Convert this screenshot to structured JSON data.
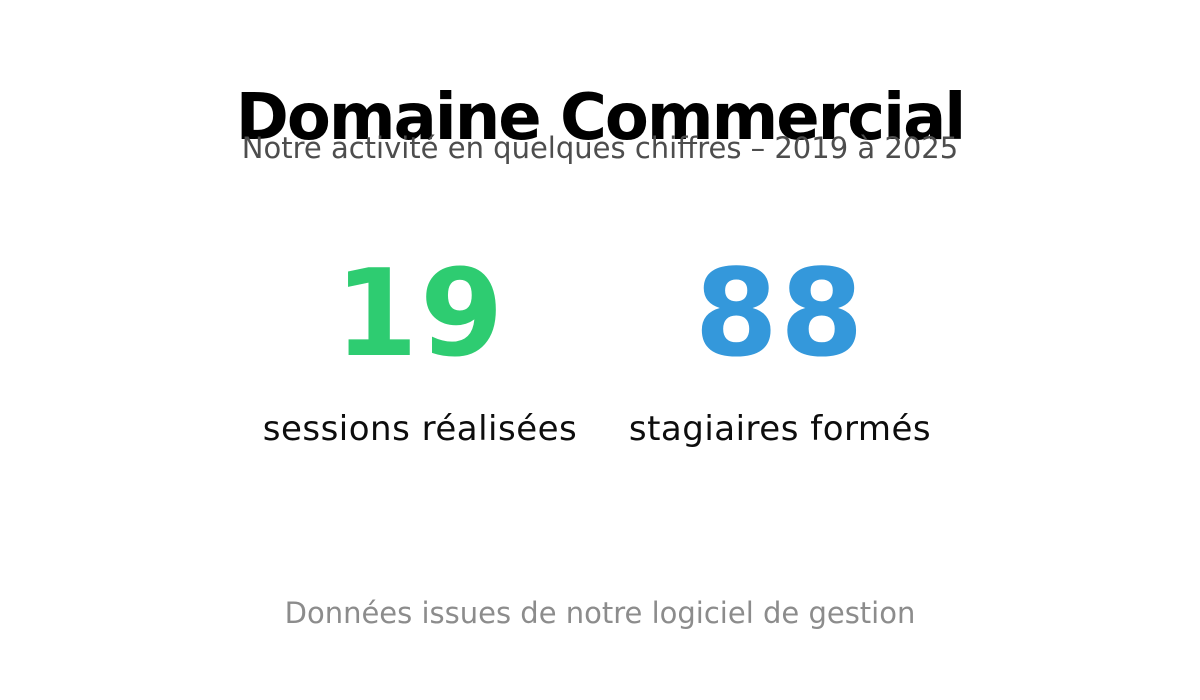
{
  "page": {
    "background": "#ffffff"
  },
  "header": {
    "title": "Domaine Commercial",
    "subtitle": "Notre activité en quelques chiffres – 2019 à 2025"
  },
  "stats": [
    {
      "value": "19",
      "label": "sessions réalisées",
      "color": "#2ecc71"
    },
    {
      "value": "88",
      "label": "stagiaires formés",
      "color": "#3498db"
    }
  ],
  "footer": {
    "note": "Données issues de notre logiciel de gestion"
  },
  "chart_data": {
    "type": "table",
    "title": "Domaine Commercial",
    "subtitle": "Notre activité en quelques chiffres – 2019 à 2025",
    "categories": [
      "sessions réalisées",
      "stagiaires formés"
    ],
    "values": [
      19,
      88
    ],
    "colors": [
      "#2ecc71",
      "#3498db"
    ],
    "note": "Données issues de notre logiciel de gestion",
    "legend": false,
    "grid": false
  }
}
